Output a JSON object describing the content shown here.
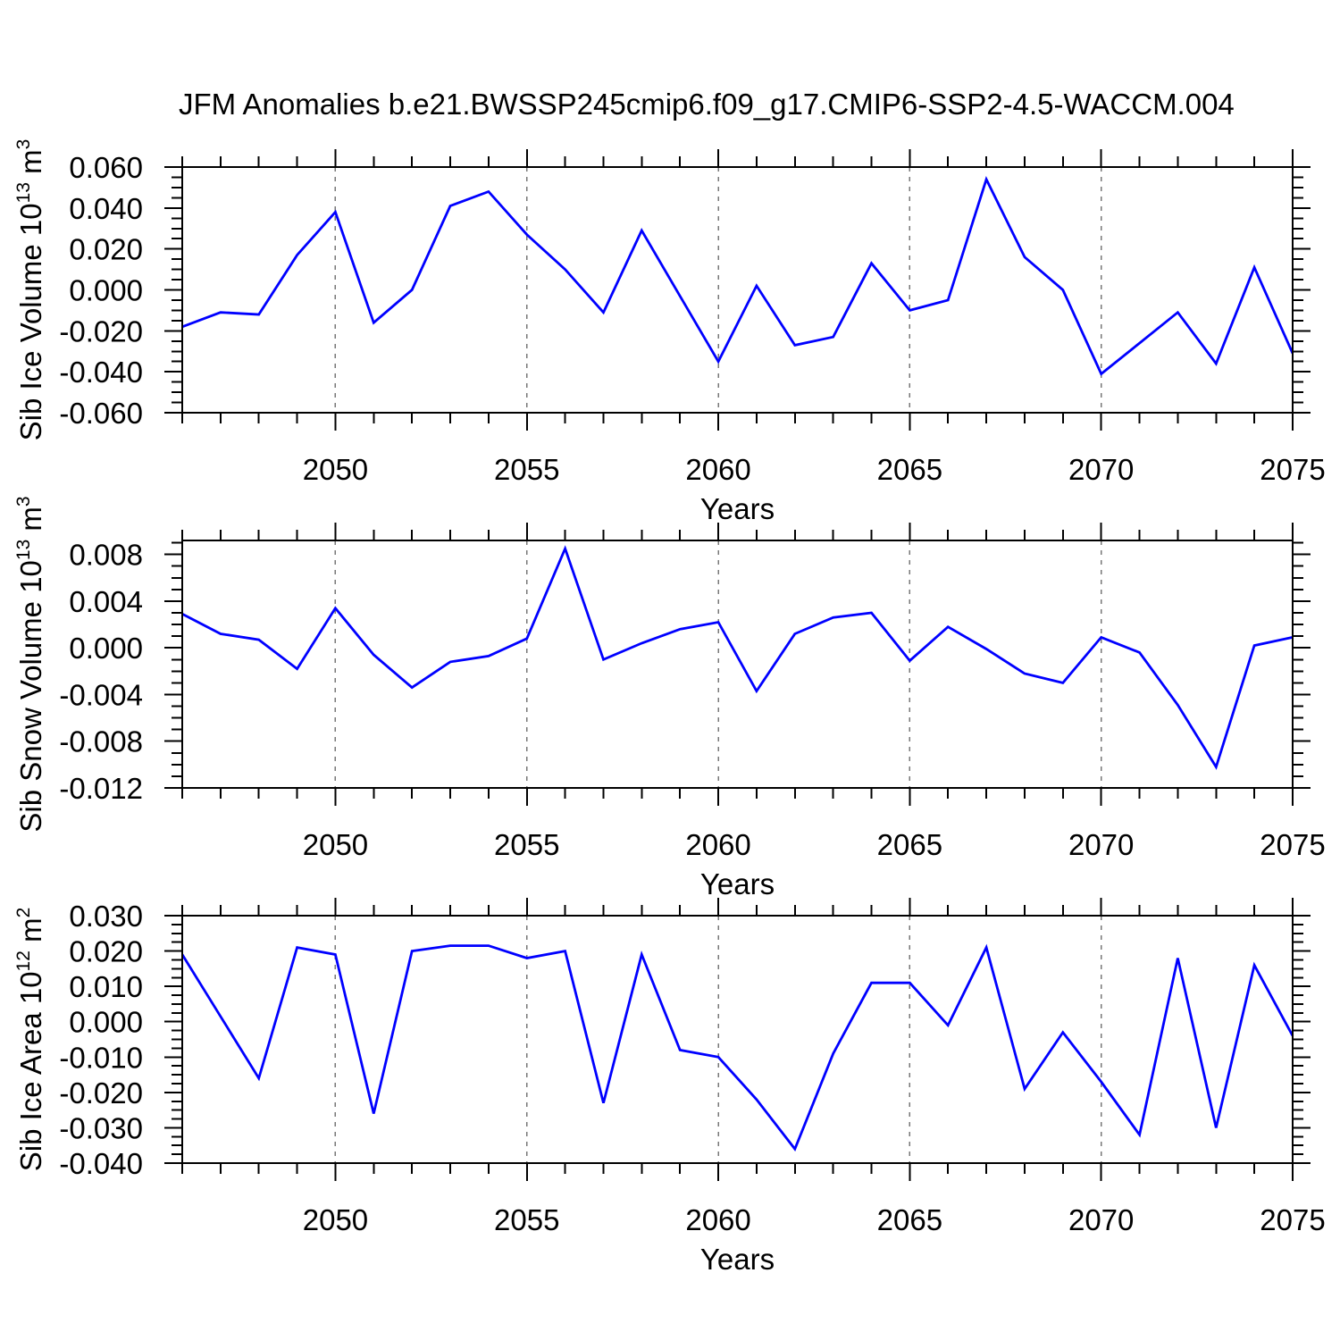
{
  "title": "JFM Anomalies b.e21.BWSSP245cmip6.f09_g17.CMIP6-SSP2-4.5-WACCM.004",
  "colors": {
    "line": "#0000ff",
    "grid": "#777777",
    "axis": "#000000",
    "background": "#ffffff"
  },
  "chart_data": [
    {
      "id": "sib-ice-volume",
      "type": "line",
      "title": "",
      "xlabel": "Years",
      "ylabel": "Sib Ice Volume 10^13 m^3",
      "ylabel_parts": [
        {
          "t": "Sib Ice Volume 10",
          "sup": false
        },
        {
          "t": "13",
          "sup": true
        },
        {
          "t": " m",
          "sup": false
        },
        {
          "t": "3",
          "sup": true
        }
      ],
      "xlim": [
        2046,
        2075
      ],
      "ylim": [
        -0.06,
        0.06
      ],
      "xticks_labeled": [
        2050,
        2055,
        2060,
        2065,
        2070,
        2075
      ],
      "grid_x": [
        2050,
        2055,
        2060,
        2065,
        2070
      ],
      "yticks": [
        0.06,
        0.04,
        0.02,
        0.0,
        -0.02,
        -0.04,
        -0.06
      ],
      "ytick_minor_step": 0.005,
      "ytick_decimals": 3,
      "x": [
        2046,
        2047,
        2048,
        2049,
        2050,
        2051,
        2052,
        2053,
        2054,
        2055,
        2056,
        2057,
        2058,
        2059,
        2060,
        2061,
        2062,
        2063,
        2064,
        2065,
        2066,
        2067,
        2068,
        2069,
        2070,
        2071,
        2072,
        2073,
        2074,
        2075
      ],
      "values": [
        -0.018,
        -0.011,
        -0.012,
        0.017,
        0.038,
        -0.016,
        0.0,
        0.041,
        0.048,
        0.027,
        0.01,
        -0.011,
        0.029,
        -0.003,
        -0.035,
        0.002,
        -0.027,
        -0.023,
        0.013,
        -0.01,
        -0.005,
        0.054,
        0.016,
        0.0,
        -0.041,
        -0.026,
        -0.011,
        -0.036,
        0.011,
        -0.031
      ]
    },
    {
      "id": "sib-snow-volume",
      "type": "line",
      "title": "",
      "xlabel": "Years",
      "ylabel": "Sib Snow Volume 10^13 m^3",
      "ylabel_parts": [
        {
          "t": "Sib Snow Volume 10",
          "sup": false
        },
        {
          "t": "13",
          "sup": true
        },
        {
          "t": " m",
          "sup": false
        },
        {
          "t": "3",
          "sup": true
        }
      ],
      "xlim": [
        2046,
        2075
      ],
      "ylim": [
        -0.012,
        0.0092
      ],
      "xticks_labeled": [
        2050,
        2055,
        2060,
        2065,
        2070,
        2075
      ],
      "grid_x": [
        2050,
        2055,
        2060,
        2065,
        2070
      ],
      "yticks": [
        0.008,
        0.004,
        0.0,
        -0.004,
        -0.008,
        -0.012
      ],
      "ytick_minor_step": 0.001,
      "ytick_decimals": 3,
      "x": [
        2046,
        2047,
        2048,
        2049,
        2050,
        2051,
        2052,
        2053,
        2054,
        2055,
        2056,
        2057,
        2058,
        2059,
        2060,
        2061,
        2062,
        2063,
        2064,
        2065,
        2066,
        2067,
        2068,
        2069,
        2070,
        2071,
        2072,
        2073,
        2074,
        2075
      ],
      "values": [
        0.0029,
        0.0012,
        0.0007,
        -0.0018,
        0.0034,
        -0.0006,
        -0.0034,
        -0.0012,
        -0.0007,
        0.0008,
        0.0085,
        -0.001,
        0.0004,
        0.0016,
        0.0022,
        -0.0037,
        0.0012,
        0.0026,
        0.003,
        -0.0011,
        0.0018,
        -0.0001,
        -0.0022,
        -0.003,
        0.0009,
        -0.0004,
        -0.0049,
        -0.0102,
        0.0002,
        0.0009
      ]
    },
    {
      "id": "sib-ice-area",
      "type": "line",
      "title": "",
      "xlabel": "Years",
      "ylabel": "Sib Ice Area 10^12 m^2",
      "ylabel_parts": [
        {
          "t": "Sib Ice Area 10",
          "sup": false
        },
        {
          "t": "12",
          "sup": true
        },
        {
          "t": " m",
          "sup": false
        },
        {
          "t": "2",
          "sup": true
        }
      ],
      "xlim": [
        2046,
        2075
      ],
      "ylim": [
        -0.04,
        0.03
      ],
      "xticks_labeled": [
        2050,
        2055,
        2060,
        2065,
        2070,
        2075
      ],
      "grid_x": [
        2050,
        2055,
        2060,
        2065,
        2070
      ],
      "yticks": [
        0.03,
        0.02,
        0.01,
        0.0,
        -0.01,
        -0.02,
        -0.03,
        -0.04
      ],
      "ytick_minor_step": 0.0025,
      "ytick_decimals": 3,
      "x": [
        2046,
        2047,
        2048,
        2049,
        2050,
        2051,
        2052,
        2053,
        2054,
        2055,
        2056,
        2057,
        2058,
        2059,
        2060,
        2061,
        2062,
        2063,
        2064,
        2065,
        2066,
        2067,
        2068,
        2069,
        2070,
        2071,
        2072,
        2073,
        2074,
        2075
      ],
      "values": [
        0.019,
        0.0015,
        -0.016,
        0.021,
        0.019,
        -0.026,
        0.02,
        0.0215,
        0.0215,
        0.018,
        0.02,
        -0.023,
        0.019,
        -0.008,
        -0.01,
        -0.022,
        -0.036,
        -0.009,
        0.011,
        0.011,
        -0.001,
        0.021,
        -0.019,
        -0.003,
        -0.017,
        -0.032,
        0.018,
        -0.03,
        0.016,
        -0.004
      ]
    }
  ]
}
